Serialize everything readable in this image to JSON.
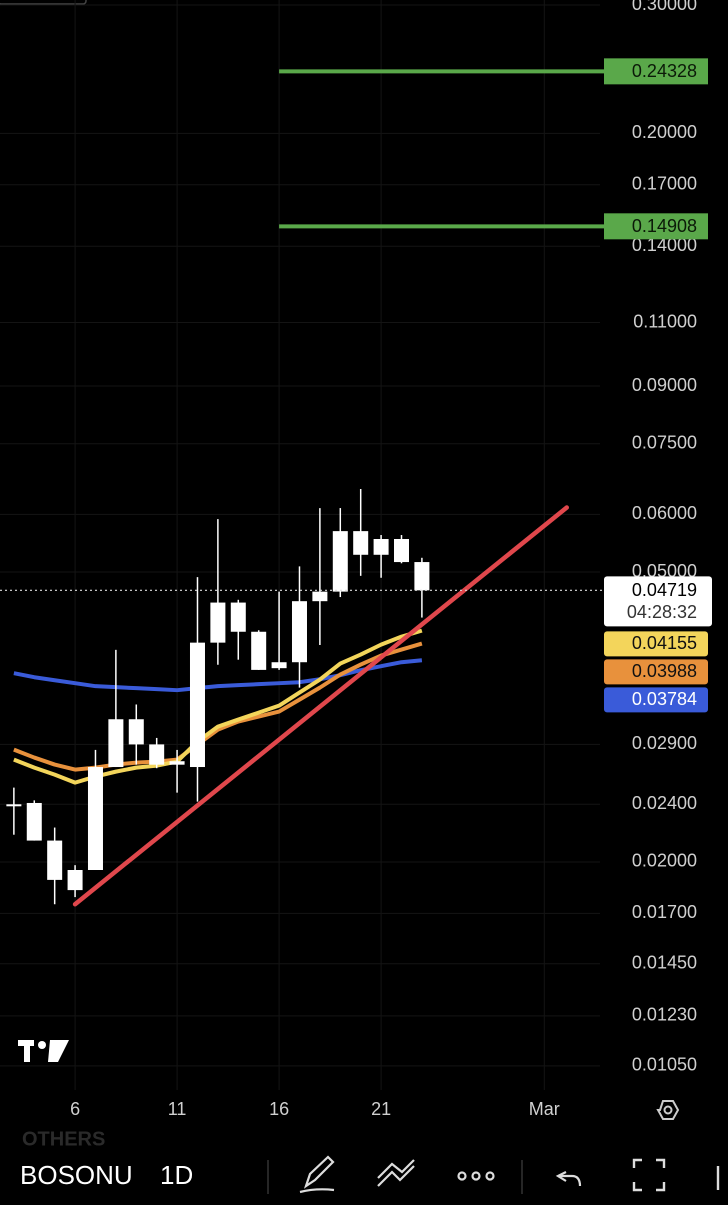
{
  "chart_data": {
    "type": "candlestick",
    "log_scale": true,
    "grid": true,
    "x": [
      3,
      4,
      5,
      6,
      7,
      8,
      9,
      10,
      11,
      12,
      13,
      14,
      15,
      16,
      17,
      18,
      19,
      20,
      21,
      22,
      23
    ],
    "open": [
      0.024,
      0.0241,
      0.0214,
      0.0195,
      0.0195,
      0.027,
      0.0314,
      0.029,
      0.0275,
      0.027,
      0.04,
      0.0454,
      0.0414,
      0.0369,
      0.0376,
      0.0456,
      0.047,
      0.0569,
      0.0528,
      0.0555,
      0.0516
    ],
    "high": [
      0.0253,
      0.0243,
      0.0223,
      0.0198,
      0.0285,
      0.0391,
      0.0329,
      0.0296,
      0.0285,
      0.0492,
      0.0591,
      0.0458,
      0.0416,
      0.047,
      0.0509,
      0.0612,
      0.0612,
      0.065,
      0.0562,
      0.0562,
      0.0523
    ],
    "low": [
      0.0218,
      0.0214,
      0.0175,
      0.0179,
      0.0195,
      0.027,
      0.0272,
      0.0269,
      0.0249,
      0.0242,
      0.0373,
      0.0379,
      0.0367,
      0.0367,
      0.0347,
      0.0397,
      0.0462,
      0.0494,
      0.0491,
      0.0514,
      0.0433
    ],
    "close": [
      0.0239,
      0.0214,
      0.0189,
      0.0183,
      0.027,
      0.0314,
      0.029,
      0.0272,
      0.0272,
      0.04,
      0.0454,
      0.0414,
      0.0367,
      0.0376,
      0.0456,
      0.047,
      0.0569,
      0.0528,
      0.0555,
      0.0516,
      0.04719
    ],
    "candle_color": "#ffffff",
    "countdown": "04:28:32",
    "series": [
      {
        "color": "#3a5bd9",
        "values": [
          0.03632,
          0.03586,
          0.03552,
          0.03519,
          0.03486,
          0.03475,
          0.03464,
          0.03453,
          0.03442,
          0.03464,
          0.03486,
          0.03497,
          0.03508,
          0.03519,
          0.0353,
          0.03563,
          0.03609,
          0.03666,
          0.03713,
          0.0376,
          0.03784
        ]
      },
      {
        "color": "#e8913c",
        "values": [
          0.02853,
          0.02782,
          0.02721,
          0.02678,
          0.02695,
          0.02721,
          0.02738,
          0.02747,
          0.02764,
          0.02899,
          0.03039,
          0.03117,
          0.03167,
          0.03217,
          0.03341,
          0.0347,
          0.03616,
          0.03732,
          0.0384,
          0.03913,
          0.03988
        ]
      },
      {
        "color": "#f3d55b",
        "values": [
          0.02764,
          0.02695,
          0.02636,
          0.0257,
          0.0262,
          0.02661,
          0.02695,
          0.02712,
          0.02747,
          0.02926,
          0.03068,
          0.03137,
          0.03206,
          0.03278,
          0.03416,
          0.03559,
          0.03744,
          0.03852,
          0.03975,
          0.04077,
          0.04155
        ]
      }
    ],
    "trendline": {
      "color": "#e0474c",
      "x": [
        6,
        30.1
      ],
      "values": [
        0.0175,
        0.0613
      ]
    },
    "levels": [
      {
        "value": 0.24328,
        "x_start": 16,
        "color": "#5aa84a"
      },
      {
        "value": 0.14908,
        "x_start": 16,
        "color": "#5aa84a"
      }
    ],
    "xlim": [
      2.32,
      31.73
    ],
    "xticks": [
      6,
      11,
      16,
      21,
      {
        "value": 29,
        "label": "Mar"
      }
    ],
    "ylim": [
      0.00973,
      0.3048
    ],
    "yticks": [
      {
        "value": 0.3,
        "label": "0.30000"
      },
      {
        "value": 0.2,
        "label": "0.20000"
      },
      {
        "value": 0.17,
        "label": "0.17000"
      },
      {
        "value": 0.14,
        "label": "0.14000"
      },
      {
        "value": 0.11,
        "label": "0.11000"
      },
      {
        "value": 0.09,
        "label": "0.09000"
      },
      {
        "value": 0.075,
        "label": "0.07500"
      },
      {
        "value": 0.06,
        "label": "0.06000"
      },
      {
        "value": 0.05,
        "label": "0.05000"
      },
      {
        "value": 0.029,
        "label": "0.02900"
      },
      {
        "value": 0.024,
        "label": "0.02400"
      },
      {
        "value": 0.02,
        "label": "0.02000"
      },
      {
        "value": 0.017,
        "label": "0.01700"
      },
      {
        "value": 0.0145,
        "label": "0.01450"
      },
      {
        "value": 0.0123,
        "label": "0.01230"
      },
      {
        "value": 0.0105,
        "label": "0.01050"
      }
    ]
  },
  "toolbar": {
    "watermark": "OTHERS",
    "symbol": "BOSONU",
    "interval": "1D"
  }
}
